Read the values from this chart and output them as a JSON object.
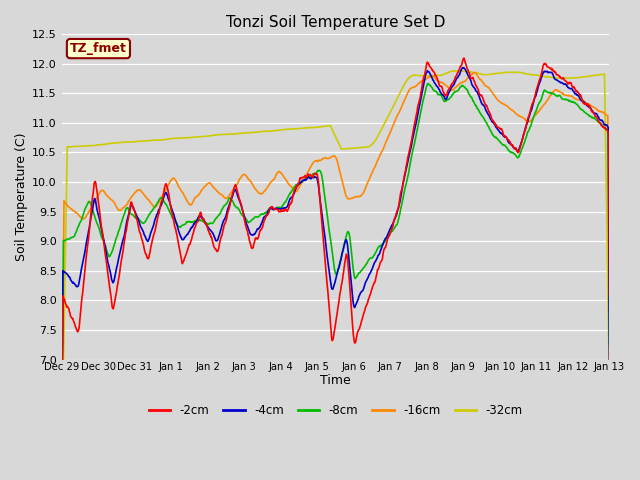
{
  "title": "Tonzi Soil Temperature Set D",
  "xlabel": "Time",
  "ylabel": "Soil Temperature (C)",
  "ylim": [
    7.0,
    12.5
  ],
  "xlim": [
    0,
    15
  ],
  "plot_bg_color": "#d8d8d8",
  "fig_bg_color": "#d8d8d8",
  "legend_label": "TZ_fmet",
  "legend_bg": "#ffffcc",
  "legend_border": "#8b0000",
  "series_colors": {
    "-2cm": "#ff0000",
    "-4cm": "#0000cc",
    "-8cm": "#00bb00",
    "-16cm": "#ff8800",
    "-32cm": "#cccc00"
  },
  "x_tick_labels": [
    "Dec 29",
    "Dec 30",
    "Dec 31",
    "Jan 1",
    "Jan 2",
    "Jan 3",
    "Jan 4",
    "Jan 5",
    "Jan 6",
    "Jan 7",
    "Jan 8",
    "Jan 9",
    "Jan 10",
    "Jan 11",
    "Jan 12",
    "Jan 13"
  ],
  "grid_color": "#ffffff",
  "linewidth": 1.2
}
